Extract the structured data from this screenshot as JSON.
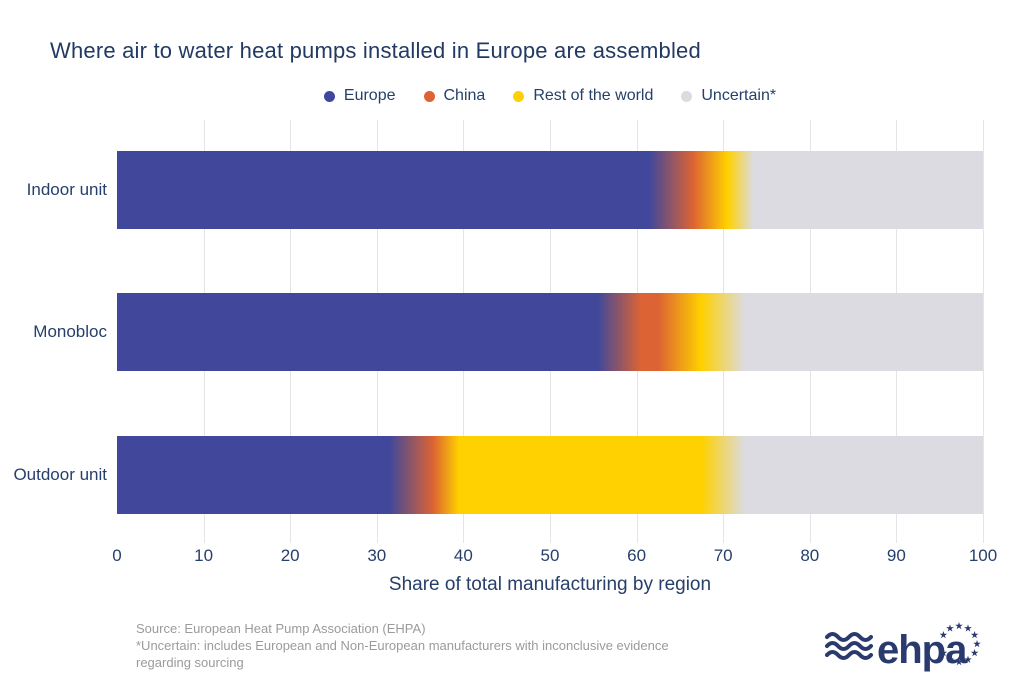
{
  "title": "Where air to water heat pumps installed in Europe are assembled",
  "chart_data": {
    "type": "bar",
    "orientation": "horizontal",
    "stacked": true,
    "gradient_transitions": true,
    "title": "Where air to water heat pumps installed in Europe are assembled",
    "categories": [
      "Indoor unit",
      "Monobloc",
      "Outdoor unit"
    ],
    "series": [
      {
        "name": "Europe",
        "color": "#41489B",
        "values": [
          64,
          58,
          34
        ]
      },
      {
        "name": "China",
        "color": "#DC6334",
        "values": [
          4,
          7,
          3
        ]
      },
      {
        "name": "Rest of the world",
        "color": "#FFD100",
        "values": [
          3,
          5,
          33
        ]
      },
      {
        "name": "Uncertain*",
        "color": "#DBDBE1",
        "values": [
          29,
          30,
          30
        ]
      }
    ],
    "xlabel": "Share of total manufacturing by region",
    "xlim": [
      0,
      100
    ],
    "xticks": [
      0,
      10,
      20,
      30,
      40,
      50,
      60,
      70,
      80,
      90,
      100
    ],
    "legend_position": "top",
    "grid": "vertical"
  },
  "footer": {
    "source_lines": [
      "Source: European Heat Pump Association (EHPA)",
      "*Uncertain: includes European and Non-European manufacturers with inconclusive evidence",
      "regarding sourcing"
    ]
  },
  "logo": {
    "text": "ehpa"
  },
  "colors": {
    "text_navy": "#26406B",
    "title_navy": "#223A63",
    "source_gray": "#9B9B9B",
    "gridline": "#E5E5E8",
    "logo_navy": "#2B3A6E",
    "background": "#FFFFFF"
  }
}
